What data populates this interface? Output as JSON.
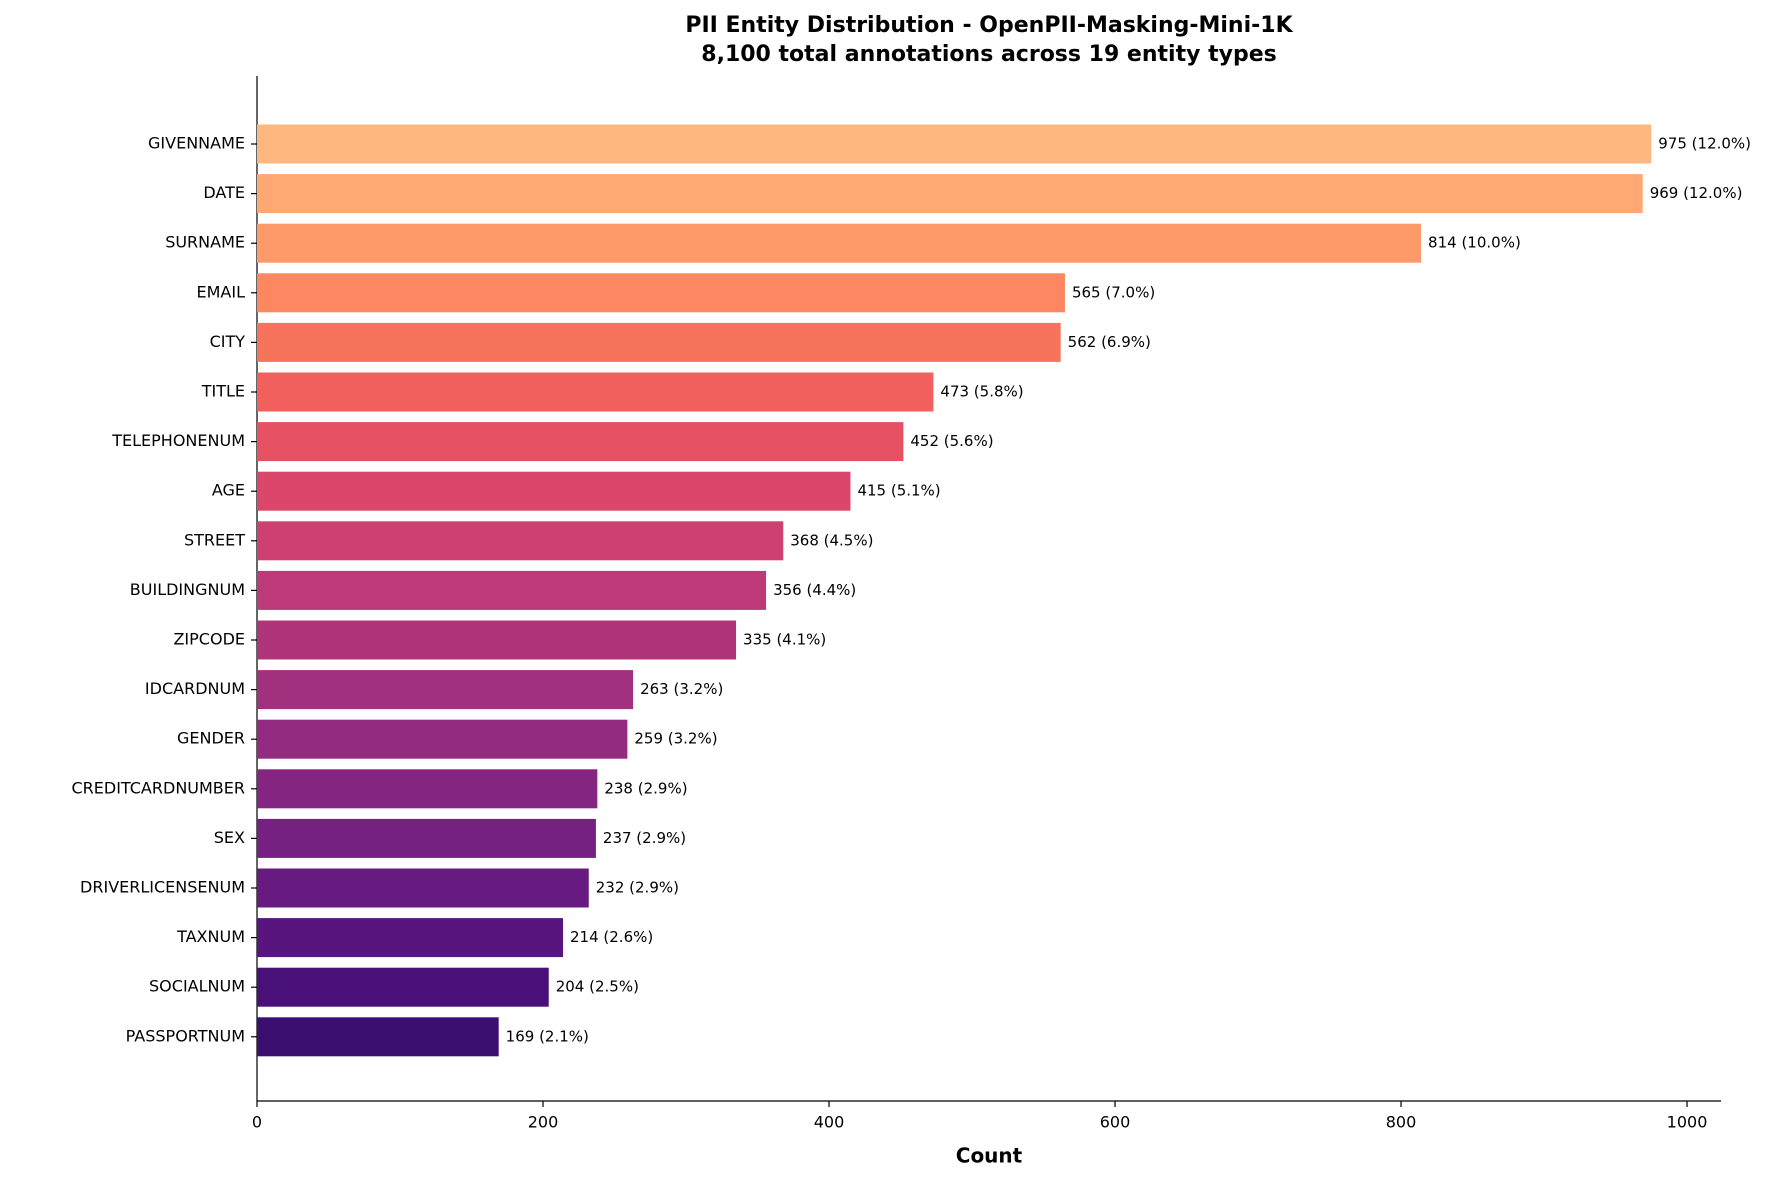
{
  "chart_data": {
    "type": "barh",
    "title": "PII Entity Distribution - OpenPII-Masking-Mini-1K",
    "subtitle": "8,100 total annotations across 19 entity types",
    "x_label": "Count",
    "categories": [
      "GIVENNAME",
      "DATE",
      "SURNAME",
      "EMAIL",
      "CITY",
      "TITLE",
      "TELEPHONENUM",
      "AGE",
      "STREET",
      "BUILDINGNUM",
      "ZIPCODE",
      "IDCARDNUM",
      "GENDER",
      "CREDITCARDNUMBER",
      "SEX",
      "DRIVERLICENSENUM",
      "TAXNUM",
      "SOCIALNUM",
      "PASSPORTNUM"
    ],
    "values": [
      975,
      969,
      814,
      565,
      562,
      473,
      452,
      415,
      368,
      356,
      335,
      263,
      259,
      238,
      237,
      232,
      214,
      204,
      169
    ],
    "value_labels": [
      "975 (12.0%)",
      "969 (12.0%)",
      "814 (10.0%)",
      "565 (7.0%)",
      "562 (6.9%)",
      "473 (5.8%)",
      "452 (5.6%)",
      "415 (5.1%)",
      "368 (4.5%)",
      "356 (4.4%)",
      "335 (4.1%)",
      "263 (3.2%)",
      "259 (3.2%)",
      "238 (2.9%)",
      "237 (2.9%)",
      "232 (2.9%)",
      "214 (2.6%)",
      "204 (2.5%)",
      "169 (2.1%)"
    ],
    "colors": [
      "#feb77e",
      "#fea873",
      "#fd9a6a",
      "#fc8761",
      "#f7735c",
      "#f1605d",
      "#e75263",
      "#db476a",
      "#cd4071",
      "#be3977",
      "#b0347a",
      "#a1307e",
      "#932b80",
      "#842681",
      "#762181",
      "#671b80",
      "#58157e",
      "#4a1079",
      "#3b0f70"
    ],
    "xlim": [
      0,
      1023.75
    ],
    "xticks": [
      0,
      200,
      400,
      600,
      800,
      1000
    ],
    "grid": false
  }
}
